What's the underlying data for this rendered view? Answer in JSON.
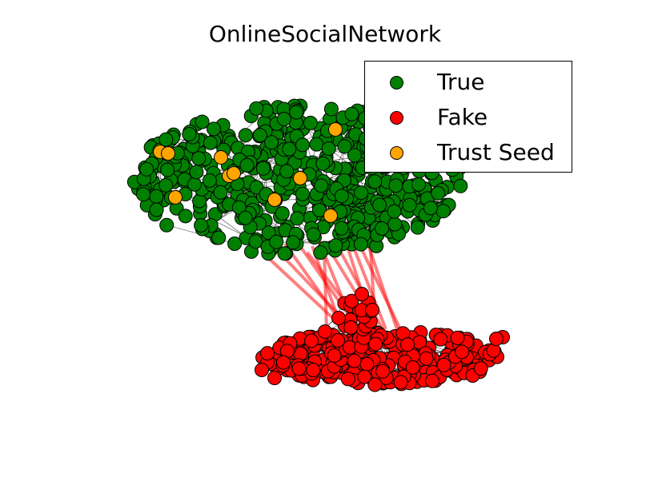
{
  "title": "OnlineSocialNetwork",
  "legend": {
    "placement": "upper-right",
    "items": [
      {
        "label": "True",
        "color": "#008000"
      },
      {
        "label": "Fake",
        "color": "#ff0000"
      },
      {
        "label": "Trust Seed",
        "color": "#ffa500"
      }
    ]
  },
  "colors": {
    "true_node": "#008000",
    "fake_node": "#ff0000",
    "trust_seed": "#ffa500",
    "attack_edge": "#ff0000",
    "edge": "#000000"
  }
}
